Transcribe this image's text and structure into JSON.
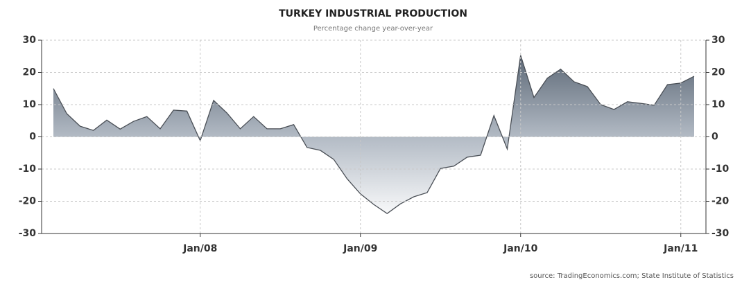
{
  "chart_data": {
    "type": "area",
    "title": "TURKEY INDUSTRIAL PRODUCTION",
    "subtitle": "Percentage change year-over-year",
    "source": "source: TradingEconomics.com; State Institute of Statistics",
    "categories": [
      null,
      null,
      null,
      null,
      null,
      null,
      null,
      null,
      null,
      null,
      null,
      "Jan/08",
      null,
      null,
      null,
      null,
      null,
      null,
      null,
      null,
      null,
      null,
      null,
      "Jan/09",
      null,
      null,
      null,
      null,
      null,
      null,
      null,
      null,
      null,
      null,
      null,
      "Jan/10",
      null,
      null,
      null,
      null,
      null,
      null,
      null,
      null,
      null,
      null,
      null,
      "Jan/11",
      null
    ],
    "series": [
      {
        "name": "Industrial production",
        "color": "#4a4f56",
        "values": [
          15,
          7.2,
          3.3,
          2,
          5.2,
          2.4,
          4.8,
          6.3,
          2.5,
          8.3,
          8,
          -1.2,
          11.3,
          7.4,
          2.5,
          6.3,
          2.5,
          2.5,
          3.8,
          -3.3,
          -4.2,
          -7,
          -13,
          -17.7,
          -21,
          -23.8,
          -20.8,
          -18.6,
          -17.3,
          -9.8,
          -9.1,
          -6.3,
          -5.7,
          6.6,
          -3.8,
          25.3,
          12.2,
          18.2,
          21,
          17.1,
          15.6,
          10,
          8.5,
          10.9,
          10.4,
          9.8,
          16.2,
          16.7,
          18.8
        ]
      }
    ],
    "ylim": [
      -30,
      30
    ],
    "yticks": [
      -30,
      -20,
      -10,
      0,
      10,
      20,
      30
    ],
    "y2lim": [
      -30,
      30
    ],
    "y2ticks": [
      -30,
      -20,
      -10,
      0,
      10,
      20,
      30
    ],
    "grid": true
  }
}
